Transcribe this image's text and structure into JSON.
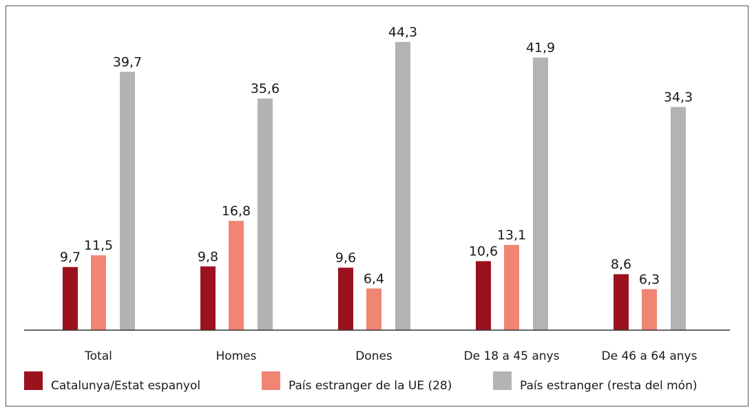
{
  "chart_data": {
    "type": "bar",
    "categories": [
      "Total",
      "Homes",
      "Dones",
      "De 18 a 45 anys",
      "De 46 a 64 anys"
    ],
    "series": [
      {
        "name": "Catalunya/Estat espanyol",
        "color": "#9b111e",
        "values": [
          9.7,
          9.8,
          9.6,
          10.6,
          8.6
        ],
        "value_labels": [
          "9,7",
          "9,8",
          "9,6",
          "10,6",
          "8,6"
        ]
      },
      {
        "name": "País estranger de la UE (28)",
        "color": "#f08573",
        "values": [
          11.5,
          16.8,
          6.4,
          13.1,
          6.3
        ],
        "value_labels": [
          "11,5",
          "16,8",
          "6,4",
          "13,1",
          "6,3"
        ]
      },
      {
        "name": "País estranger (resta del món)",
        "color": "#b3b3b3",
        "values": [
          39.7,
          35.6,
          44.3,
          41.9,
          34.3
        ],
        "value_labels": [
          "39,7",
          "35,6",
          "44,3",
          "41,9",
          "34,3"
        ]
      }
    ],
    "ylim": [
      0,
      50
    ]
  }
}
